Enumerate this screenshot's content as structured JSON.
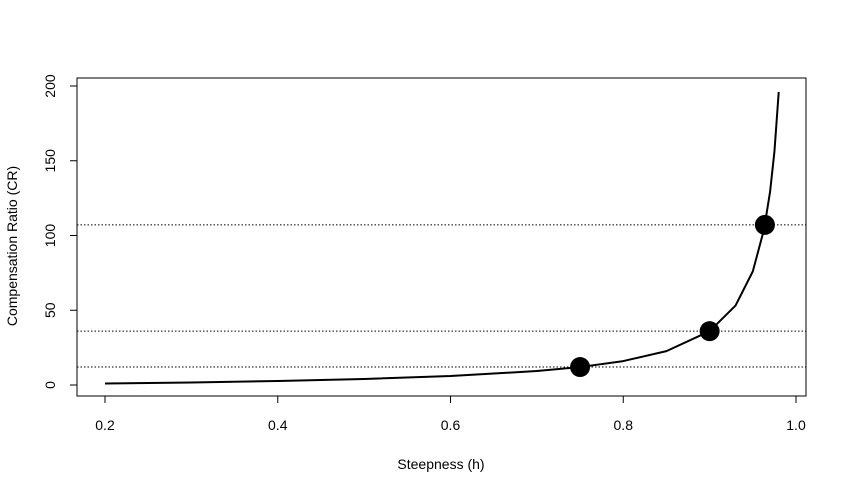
{
  "chart_data": {
    "type": "line",
    "title": "",
    "xlabel": "Steepness (h)",
    "ylabel": "Compensation Ratio (CR)",
    "xlim": [
      0.2,
      1.0
    ],
    "ylim": [
      0,
      200
    ],
    "x_ticks": [
      0.2,
      0.4,
      0.6,
      0.8,
      1.0
    ],
    "x_tick_labels": [
      "0.2",
      "0.4",
      "0.6",
      "0.8",
      "1.0"
    ],
    "y_ticks": [
      0,
      50,
      100,
      150,
      200
    ],
    "y_tick_labels": [
      "0",
      "50",
      "100",
      "150",
      "200"
    ],
    "grid": false,
    "legend": "none",
    "series": [
      {
        "style": "line",
        "color": "#000000",
        "x": [
          0.2,
          0.3,
          0.4,
          0.5,
          0.6,
          0.7,
          0.75,
          0.8,
          0.85,
          0.9,
          0.93,
          0.95,
          0.963,
          0.97,
          0.975,
          0.98
        ],
        "y": [
          1,
          1.71,
          2.67,
          4,
          6,
          9.33,
          12,
          16,
          22.67,
          36,
          53.14,
          76,
          104.1,
          129.33,
          156,
          196
        ]
      },
      {
        "style": "points",
        "color": "#000000",
        "x": [
          0.75,
          0.9,
          0.964
        ],
        "y": [
          12,
          36,
          107.1
        ]
      }
    ],
    "reference_lines": [
      {
        "orientation": "horizontal",
        "style": "dotted",
        "y": 12
      },
      {
        "orientation": "horizontal",
        "style": "dotted",
        "y": 36
      },
      {
        "orientation": "horizontal",
        "style": "dotted",
        "y": 107.1
      }
    ]
  }
}
